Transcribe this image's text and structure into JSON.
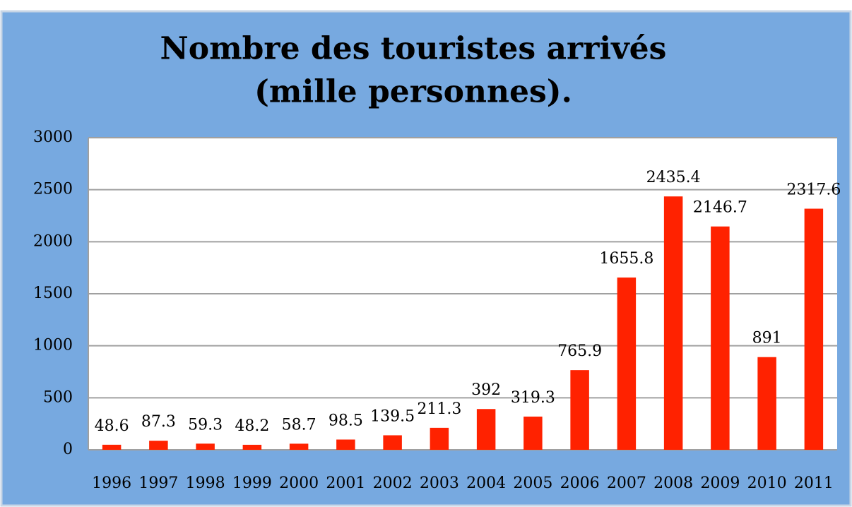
{
  "chart_data": {
    "type": "bar",
    "title": [
      "Nombre des touristes arrivés",
      "(mille personnes)."
    ],
    "categories": [
      "1996",
      "1997",
      "1998",
      "1999",
      "2000",
      "2001",
      "2002",
      "2003",
      "2004",
      "2005",
      "2006",
      "2007",
      "2008",
      "2009",
      "2010",
      "2011"
    ],
    "values": [
      48.6,
      87.3,
      59.3,
      48.2,
      58.7,
      98.5,
      139.5,
      211.3,
      392,
      319.3,
      765.9,
      1655.8,
      2435.4,
      2146.7,
      891,
      2317.6
    ],
    "color": "#ff2200",
    "ylim": [
      0,
      3000
    ],
    "yticks": [
      0,
      500,
      1000,
      1500,
      2000,
      2500,
      3000
    ],
    "grid": true
  }
}
